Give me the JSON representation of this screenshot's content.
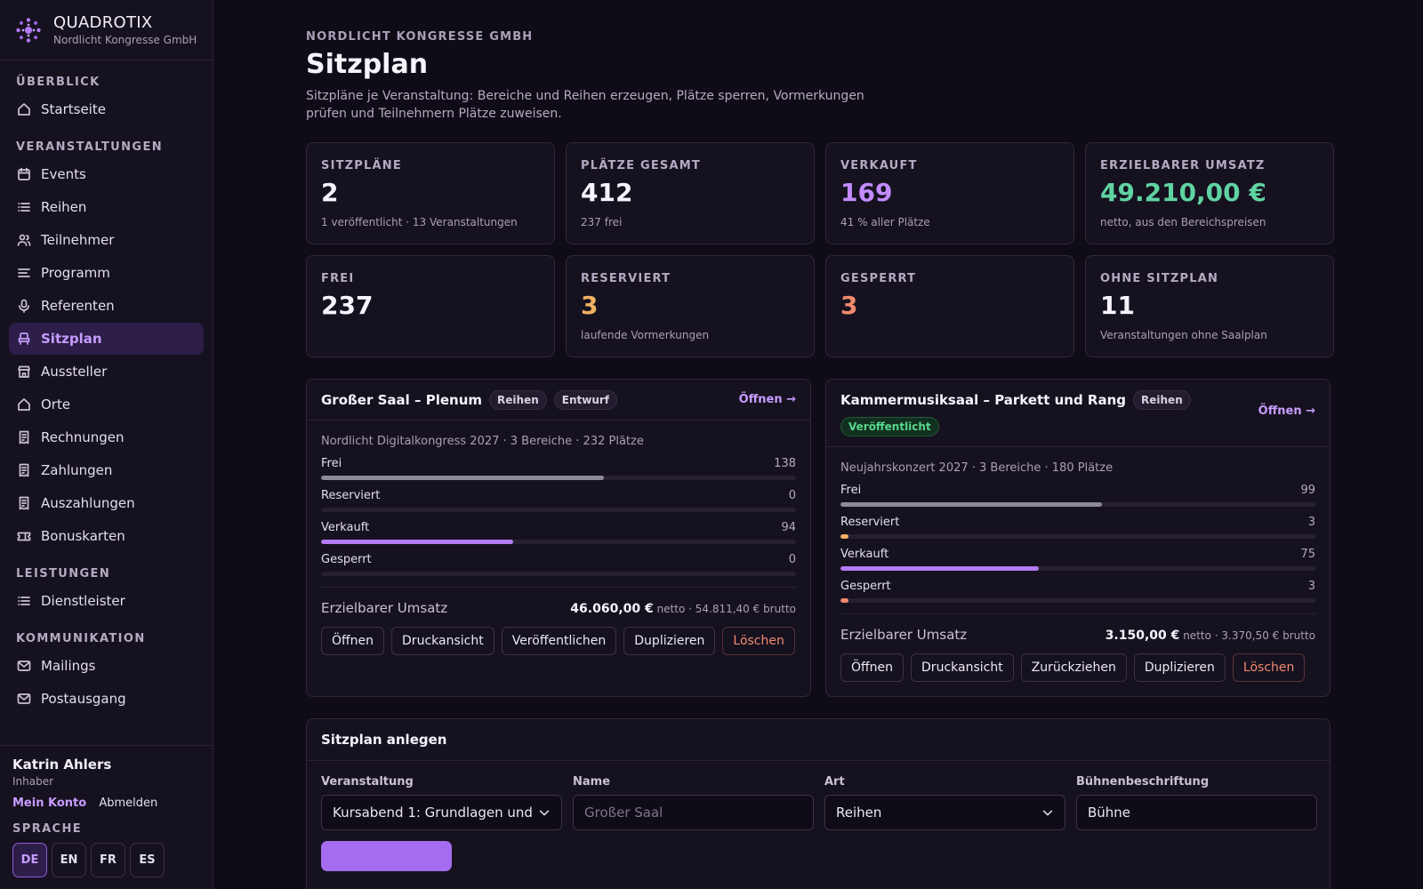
{
  "brand": {
    "name": "QUADROTIX",
    "sub": "Nordlicht Kongresse GmbH"
  },
  "nav": {
    "s1": "ÜBERBLICK",
    "home": "Startseite",
    "s2": "VERANSTALTUNGEN",
    "events": "Events",
    "reihen": "Reihen",
    "teilnehmer": "Teilnehmer",
    "programm": "Programm",
    "referenten": "Referenten",
    "sitzplan": "Sitzplan",
    "aussteller": "Aussteller",
    "orte": "Orte",
    "rechnungen": "Rechnungen",
    "zahlungen": "Zahlungen",
    "auszahlungen": "Auszahlungen",
    "bonuskarten": "Bonuskarten",
    "s3": "LEISTUNGEN",
    "dienstleister": "Dienstleister",
    "s4": "KOMMUNIKATION",
    "mailings": "Mailings",
    "postausgang": "Postausgang"
  },
  "user": {
    "name": "Katrin Ahlers",
    "role": "Inhaber",
    "account": "Mein Konto",
    "logout": "Abmelden"
  },
  "lang": {
    "label": "SPRACHE",
    "de": "DE",
    "en": "EN",
    "fr": "FR",
    "es": "ES"
  },
  "header": {
    "eyebrow": "NORDLICHT KONGRESSE GMBH",
    "title": "Sitzplan",
    "desc": "Sitzpläne je Veranstaltung: Bereiche und Reihen erzeugen, Plätze sperren, Vormerkungen prüfen und Teilnehmern Plätze zuweisen."
  },
  "stats": [
    {
      "label": "SITZPLÄNE",
      "value": "2",
      "sub": "1 veröffentlicht · 13 Veranstaltungen"
    },
    {
      "label": "PLÄTZE GESAMT",
      "value": "412",
      "sub": "237 frei"
    },
    {
      "label": "VERKAUFT",
      "value": "169",
      "sub": "41 % aller Plätze"
    },
    {
      "label": "ERZIELBARER UMSATZ",
      "value": "49.210,00 €",
      "sub": "netto, aus den Bereichspreisen"
    },
    {
      "label": "FREI",
      "value": "237",
      "sub": ""
    },
    {
      "label": "RESERVIERT",
      "value": "3",
      "sub": "laufende Vormerkungen"
    },
    {
      "label": "GESPERRT",
      "value": "3",
      "sub": ""
    },
    {
      "label": "OHNE SITZPLAN",
      "value": "11",
      "sub": "Veranstaltungen ohne Saalplan"
    }
  ],
  "colors": {
    "frei": "#8f8a98",
    "reserviert": "#f2b163",
    "verkauft": "#b57bf4",
    "gesperrt": "#f08a6e"
  },
  "plans": [
    {
      "title": "Großer Saal – Plenum",
      "badge_type": "Reihen",
      "badge_status": "Entwurf",
      "open": "Öffnen →",
      "meta": "Nordlicht Digitalkongress 2027 · 3 Bereiche · 232 Plätze",
      "bars": [
        {
          "label": "Frei",
          "value": "138",
          "frac": 0.595
        },
        {
          "label": "Reserviert",
          "value": "0",
          "frac": 0
        },
        {
          "label": "Verkauft",
          "value": "94",
          "frac": 0.405
        },
        {
          "label": "Gesperrt",
          "value": "0",
          "frac": 0
        }
      ],
      "rev_label": "Erzielbarer Umsatz",
      "rev_net": "46.060,00 €",
      "rev_rest": " netto · 54.811,40 € brutto",
      "actions": [
        "Öffnen",
        "Druckansicht",
        "Veröffentlichen",
        "Duplizieren"
      ],
      "delete": "Löschen"
    },
    {
      "title": "Kammermusiksaal – Parkett und Rang",
      "badge_type": "Reihen",
      "badge_status": "Veröffentlicht",
      "open": "Öffnen →",
      "meta": "Neujahrskonzert 2027 · 3 Bereiche · 180 Plätze",
      "bars": [
        {
          "label": "Frei",
          "value": "99",
          "frac": 0.55
        },
        {
          "label": "Reserviert",
          "value": "3",
          "frac": 0.017
        },
        {
          "label": "Verkauft",
          "value": "75",
          "frac": 0.417
        },
        {
          "label": "Gesperrt",
          "value": "3",
          "frac": 0.017
        }
      ],
      "rev_label": "Erzielbarer Umsatz",
      "rev_net": "3.150,00 €",
      "rev_rest": " netto · 3.370,50 € brutto",
      "actions": [
        "Öffnen",
        "Druckansicht",
        "Zurückziehen",
        "Duplizieren"
      ],
      "delete": "Löschen"
    }
  ],
  "create": {
    "title": "Sitzplan anlegen",
    "veranstaltung_label": "Veranstaltung",
    "veranstaltung_value": "Kursabend 1: Grundlagen und",
    "name_label": "Name",
    "name_placeholder": "Großer Saal",
    "art_label": "Art",
    "art_value": "Reihen",
    "buehne_label": "Bühnenbeschriftung",
    "buehne_value": "Bühne"
  }
}
